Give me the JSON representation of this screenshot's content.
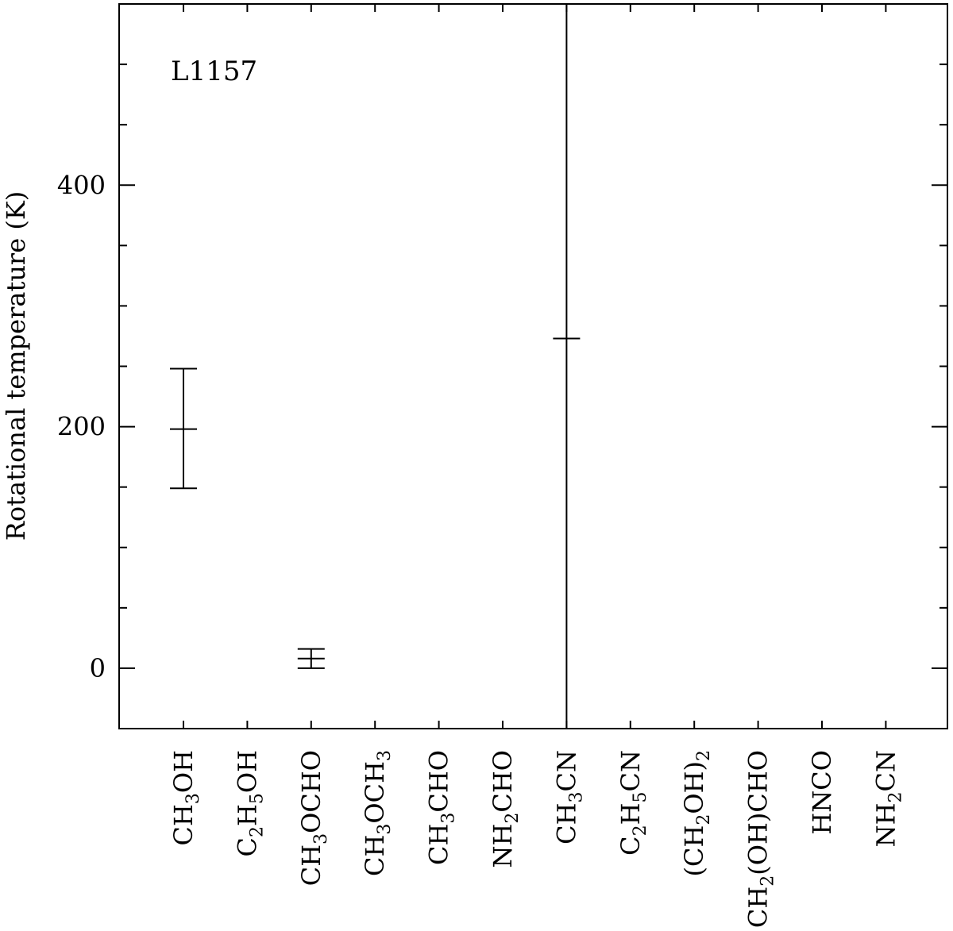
{
  "chart_data": {
    "type": "scatter",
    "title": "",
    "annotation": "L1157",
    "ylabel": "Rotational temperature (K)",
    "xlabel": "",
    "ylim": [
      -50,
      550
    ],
    "yticks_major": [
      0,
      200,
      400
    ],
    "yticks_minor_step": 50,
    "categories": [
      {
        "label": [
          [
            "CH",
            "n"
          ],
          [
            "3",
            "s"
          ],
          [
            "OH",
            "n"
          ]
        ]
      },
      {
        "label": [
          [
            "C",
            "n"
          ],
          [
            "2",
            "s"
          ],
          [
            "H",
            "n"
          ],
          [
            "5",
            "s"
          ],
          [
            "OH",
            "n"
          ]
        ]
      },
      {
        "label": [
          [
            "CH",
            "n"
          ],
          [
            "3",
            "s"
          ],
          [
            "OCHO",
            "n"
          ]
        ]
      },
      {
        "label": [
          [
            "CH",
            "n"
          ],
          [
            "3",
            "s"
          ],
          [
            "OCH",
            "n"
          ],
          [
            "3",
            "s"
          ]
        ]
      },
      {
        "label": [
          [
            "CH",
            "n"
          ],
          [
            "3",
            "s"
          ],
          [
            "CHO",
            "n"
          ]
        ]
      },
      {
        "label": [
          [
            "NH",
            "n"
          ],
          [
            "2",
            "s"
          ],
          [
            "CHO",
            "n"
          ]
        ]
      },
      {
        "label": [
          [
            "CH",
            "n"
          ],
          [
            "3",
            "s"
          ],
          [
            "CN",
            "n"
          ]
        ]
      },
      {
        "label": [
          [
            "C",
            "n"
          ],
          [
            "2",
            "s"
          ],
          [
            "H",
            "n"
          ],
          [
            "5",
            "s"
          ],
          [
            "CN",
            "n"
          ]
        ]
      },
      {
        "label": [
          [
            "(CH",
            "n"
          ],
          [
            "2",
            "s"
          ],
          [
            "OH)",
            "n"
          ],
          [
            "2",
            "s"
          ]
        ]
      },
      {
        "label": [
          [
            "CH",
            "n"
          ],
          [
            "2",
            "s"
          ],
          [
            "(OH)CHO",
            "n"
          ]
        ]
      },
      {
        "label": [
          [
            "HNCO",
            "n"
          ]
        ]
      },
      {
        "label": [
          [
            "NH",
            "n"
          ],
          [
            "2",
            "s"
          ],
          [
            "CN",
            "n"
          ]
        ]
      }
    ],
    "points": [
      {
        "category_index": 0,
        "y": 198,
        "y_low": 149,
        "y_high": 248
      },
      {
        "category_index": 2,
        "y": 8,
        "y_low": 0,
        "y_high": 16
      },
      {
        "category_index": 6,
        "y": 273,
        "y_low": -50,
        "y_high": 550
      }
    ]
  }
}
